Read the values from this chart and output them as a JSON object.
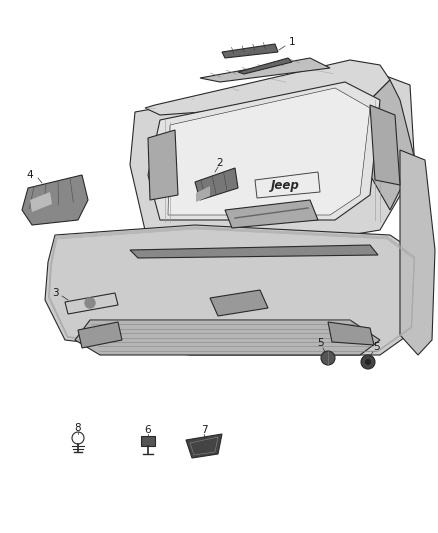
{
  "background_color": "#ffffff",
  "line_color": "#2a2a2a",
  "fill_light": "#e8e8e8",
  "fill_mid": "#c8c8c8",
  "fill_dark": "#888888",
  "fill_darker": "#555555",
  "fig_width": 4.38,
  "fig_height": 5.33,
  "dpi": 100,
  "label_fontsize": 7.5,
  "label_color": "#1a1a1a",
  "part1_label": "1",
  "part2_label": "2",
  "part3_label": "3",
  "part4_label": "4",
  "part5a_label": "5",
  "part5b_label": "5",
  "part6_label": "6",
  "part7_label": "7",
  "part8_label": "8"
}
